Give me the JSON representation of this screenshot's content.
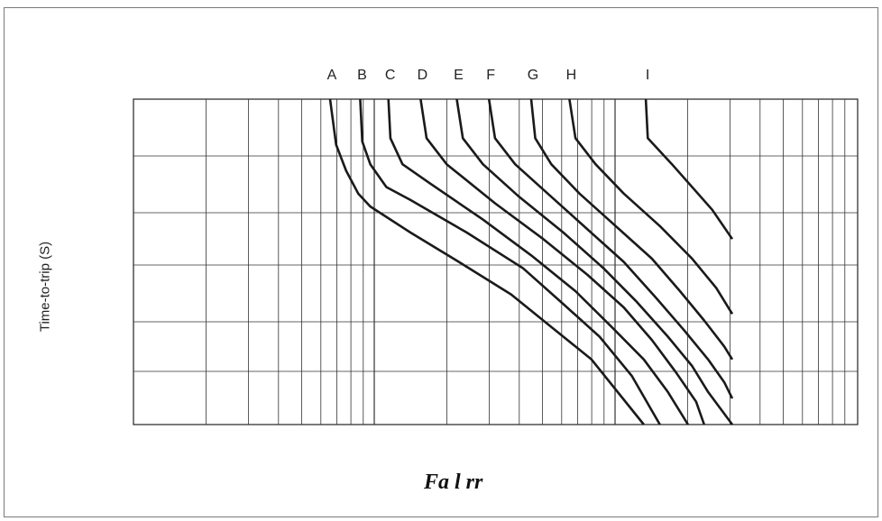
{
  "chart_data": {
    "type": "line",
    "title": "",
    "xlabel": "Fa l rr",
    "ylabel": "Time-to-trip (S)",
    "xscale": "log",
    "yscale": "log",
    "grid": true,
    "legend": "curve letters above plot (A–I)",
    "series": [
      {
        "name": "A",
        "points": [
          [
            0.0,
            1.0
          ],
          [
            0.015,
            0.86
          ],
          [
            0.04,
            0.78
          ],
          [
            0.07,
            0.71
          ],
          [
            0.1,
            0.67
          ],
          [
            0.2,
            0.59
          ],
          [
            0.32,
            0.5
          ],
          [
            0.45,
            0.4
          ],
          [
            0.55,
            0.3
          ],
          [
            0.65,
            0.2
          ],
          [
            0.78,
            0.0
          ]
        ]
      },
      {
        "name": "B",
        "points": [
          [
            0.075,
            1.0
          ],
          [
            0.08,
            0.87
          ],
          [
            0.1,
            0.8
          ],
          [
            0.14,
            0.73
          ],
          [
            0.2,
            0.69
          ],
          [
            0.34,
            0.59
          ],
          [
            0.48,
            0.48
          ],
          [
            0.58,
            0.37
          ],
          [
            0.67,
            0.27
          ],
          [
            0.75,
            0.15
          ],
          [
            0.82,
            0.0
          ]
        ]
      },
      {
        "name": "C",
        "points": [
          [
            0.145,
            1.0
          ],
          [
            0.15,
            0.88
          ],
          [
            0.18,
            0.8
          ],
          [
            0.25,
            0.74
          ],
          [
            0.38,
            0.63
          ],
          [
            0.5,
            0.52
          ],
          [
            0.61,
            0.41
          ],
          [
            0.7,
            0.3
          ],
          [
            0.78,
            0.2
          ],
          [
            0.84,
            0.1
          ],
          [
            0.89,
            0.0
          ]
        ]
      },
      {
        "name": "D",
        "points": [
          [
            0.225,
            1.0
          ],
          [
            0.24,
            0.88
          ],
          [
            0.29,
            0.8
          ],
          [
            0.41,
            0.68
          ],
          [
            0.53,
            0.57
          ],
          [
            0.64,
            0.46
          ],
          [
            0.73,
            0.36
          ],
          [
            0.8,
            0.26
          ],
          [
            0.86,
            0.16
          ],
          [
            0.91,
            0.07
          ],
          [
            0.93,
            0.0
          ]
        ]
      },
      {
        "name": "E",
        "points": [
          [
            0.315,
            1.0
          ],
          [
            0.33,
            0.88
          ],
          [
            0.38,
            0.8
          ],
          [
            0.47,
            0.7
          ],
          [
            0.58,
            0.59
          ],
          [
            0.68,
            0.48
          ],
          [
            0.76,
            0.38
          ],
          [
            0.84,
            0.27
          ],
          [
            0.9,
            0.18
          ],
          [
            0.94,
            0.1
          ],
          [
            1.0,
            0.0
          ]
        ]
      },
      {
        "name": "F",
        "points": [
          [
            0.395,
            1.0
          ],
          [
            0.41,
            0.88
          ],
          [
            0.46,
            0.8
          ],
          [
            0.55,
            0.7
          ],
          [
            0.64,
            0.6
          ],
          [
            0.73,
            0.5
          ],
          [
            0.81,
            0.39
          ],
          [
            0.88,
            0.29
          ],
          [
            0.94,
            0.2
          ],
          [
            0.98,
            0.13
          ],
          [
            1.0,
            0.08
          ]
        ]
      },
      {
        "name": "G",
        "points": [
          [
            0.5,
            1.0
          ],
          [
            0.51,
            0.88
          ],
          [
            0.55,
            0.8
          ],
          [
            0.62,
            0.71
          ],
          [
            0.71,
            0.61
          ],
          [
            0.8,
            0.51
          ],
          [
            0.87,
            0.41
          ],
          [
            0.93,
            0.32
          ],
          [
            0.98,
            0.24
          ],
          [
            1.0,
            0.2
          ]
        ]
      },
      {
        "name": "H",
        "points": [
          [
            0.595,
            1.0
          ],
          [
            0.61,
            0.88
          ],
          [
            0.66,
            0.8
          ],
          [
            0.73,
            0.71
          ],
          [
            0.82,
            0.61
          ],
          [
            0.9,
            0.51
          ],
          [
            0.96,
            0.42
          ],
          [
            1.0,
            0.34
          ]
        ]
      },
      {
        "name": "I",
        "points": [
          [
            0.785,
            1.0
          ],
          [
            0.79,
            0.88
          ],
          [
            0.85,
            0.8
          ],
          [
            0.95,
            0.66
          ],
          [
            1.0,
            0.57
          ]
        ]
      }
    ]
  }
}
